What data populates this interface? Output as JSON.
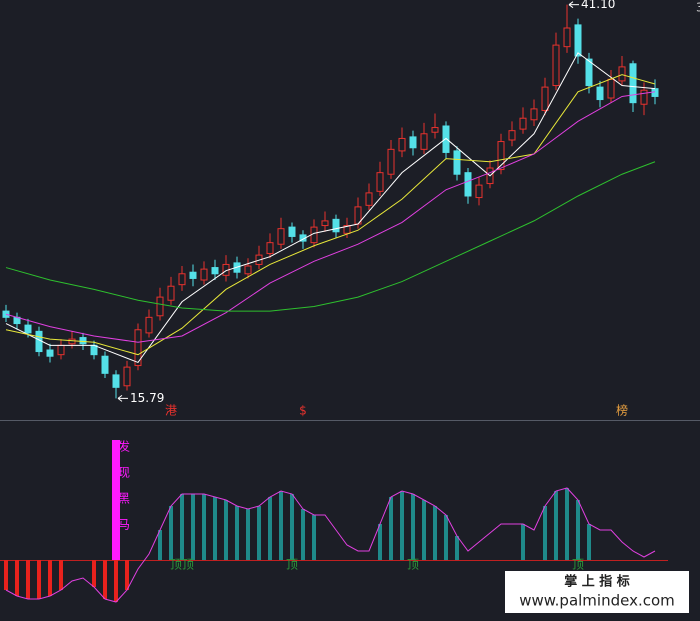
{
  "chart_data": [
    {
      "type": "candlestick",
      "open": [
        21.4,
        21.0,
        20.5,
        20.1,
        18.9,
        18.6,
        19.3,
        19.7,
        19.2,
        18.5,
        17.3,
        16.6,
        17.9,
        20.0,
        21.1,
        22.1,
        23.1,
        23.9,
        23.4,
        24.2,
        23.7,
        24.5,
        23.8,
        24.4,
        25.1,
        25.7,
        26.8,
        26.3,
        25.8,
        26.9,
        27.3,
        26.4,
        27.0,
        28.2,
        29.1,
        30.2,
        31.7,
        32.6,
        31.8,
        32.9,
        33.3,
        31.7,
        30.3,
        28.7,
        29.6,
        30.5,
        32.4,
        33.1,
        33.7,
        34.3,
        35.9,
        38.4,
        39.8,
        37.6,
        35.8,
        35.1,
        36.2,
        37.3,
        34.7,
        35.7
      ],
      "high": [
        21.8,
        21.3,
        20.9,
        20.4,
        19.3,
        19.6,
        20.1,
        20.0,
        19.5,
        18.8,
        17.6,
        18.2,
        20.6,
        21.5,
        22.9,
        23.6,
        24.3,
        24.4,
        24.6,
        24.7,
        25.0,
        24.9,
        24.8,
        25.6,
        26.4,
        27.4,
        27.1,
        26.6,
        27.3,
        27.8,
        27.6,
        27.4,
        28.7,
        29.6,
        31.0,
        32.4,
        33.2,
        33.0,
        33.5,
        34.1,
        33.6,
        32.0,
        30.6,
        30.0,
        31.1,
        32.8,
        33.6,
        34.5,
        35.0,
        36.4,
        39.3,
        41.1,
        40.2,
        38.0,
        36.2,
        36.9,
        37.8,
        37.5,
        36.1,
        36.3
      ],
      "low": [
        20.7,
        20.2,
        19.7,
        18.5,
        18.1,
        18.3,
        19.0,
        18.9,
        18.3,
        17.1,
        15.79,
        16.3,
        17.6,
        19.7,
        20.8,
        21.8,
        22.7,
        23.0,
        23.1,
        23.4,
        23.3,
        23.5,
        23.5,
        24.1,
        24.8,
        25.4,
        25.8,
        25.4,
        25.5,
        26.5,
        26.1,
        26.1,
        26.7,
        27.9,
        28.8,
        29.9,
        31.3,
        31.4,
        31.5,
        32.5,
        31.2,
        29.8,
        28.3,
        28.2,
        29.3,
        30.2,
        32.0,
        32.8,
        33.3,
        34.0,
        35.6,
        38.0,
        37.3,
        35.4,
        34.5,
        34.8,
        35.9,
        34.2,
        34.0,
        34.7
      ],
      "close": [
        21.0,
        20.6,
        20.0,
        18.8,
        18.5,
        19.2,
        19.6,
        19.3,
        18.6,
        17.4,
        16.5,
        17.8,
        20.2,
        21.0,
        22.3,
        23.0,
        23.8,
        23.5,
        24.1,
        23.8,
        24.4,
        23.9,
        24.3,
        25.0,
        25.8,
        26.7,
        26.2,
        25.9,
        26.8,
        27.2,
        26.5,
        26.9,
        28.1,
        29.0,
        30.3,
        31.8,
        32.5,
        31.9,
        32.8,
        33.2,
        31.6,
        30.2,
        28.8,
        29.5,
        30.6,
        32.3,
        33.0,
        33.8,
        34.4,
        35.8,
        38.5,
        39.6,
        37.8,
        35.9,
        35.0,
        36.3,
        37.1,
        34.8,
        35.6,
        35.2
      ],
      "up_color": "#e8322d",
      "down_color": "#54e0e8",
      "ylim": [
        14.4,
        41.4
      ],
      "ma_lines": [
        {
          "color": "#ffffff",
          "x": [
            0,
            4,
            8,
            12,
            16,
            20,
            24,
            28,
            32,
            36,
            40,
            44,
            48,
            52,
            56,
            59
          ],
          "values": [
            20.6,
            19.2,
            19.2,
            18.1,
            22.0,
            24.0,
            24.9,
            26.4,
            27.0,
            30.3,
            32.5,
            30.1,
            32.8,
            38.0,
            35.9,
            35.7
          ]
        },
        {
          "color": "#e8e83a",
          "x": [
            0,
            4,
            8,
            12,
            16,
            20,
            24,
            28,
            32,
            36,
            40,
            44,
            48,
            52,
            56,
            59
          ],
          "values": [
            20.2,
            19.6,
            19.4,
            18.6,
            20.3,
            22.8,
            24.4,
            25.6,
            26.6,
            28.6,
            31.2,
            31.0,
            31.5,
            35.5,
            36.6,
            36.0
          ]
        },
        {
          "color": "#e040e0",
          "x": [
            0,
            4,
            8,
            12,
            16,
            20,
            24,
            28,
            32,
            36,
            40,
            44,
            48,
            52,
            56,
            59
          ],
          "values": [
            21.2,
            20.4,
            19.8,
            19.4,
            19.8,
            21.3,
            23.2,
            24.6,
            25.7,
            27.1,
            29.2,
            30.3,
            31.5,
            33.6,
            35.2,
            35.5
          ]
        },
        {
          "color": "#2ec02e",
          "x": [
            0,
            4,
            8,
            12,
            16,
            20,
            24,
            28,
            32,
            36,
            40,
            44,
            48,
            52,
            56,
            59
          ],
          "values": [
            24.2,
            23.4,
            22.8,
            22.1,
            21.6,
            21.4,
            21.4,
            21.7,
            22.3,
            23.3,
            24.6,
            25.9,
            27.2,
            28.8,
            30.2,
            31.0
          ]
        }
      ],
      "annotations": [
        {
          "x": 51,
          "value": 41.1,
          "label": "41.10"
        },
        {
          "x": 10,
          "value": 15.79,
          "label": "15.79"
        }
      ],
      "markers": [
        {
          "x": 15,
          "label": "港",
          "color": "#e8322d"
        },
        {
          "x": 27,
          "label": "$",
          "color": "#e8322d"
        },
        {
          "x": 56,
          "label": "榜",
          "color": "#e8a040"
        }
      ],
      "axis_fragment": "3"
    },
    {
      "type": "indicator",
      "values": [
        -10,
        -12,
        -13,
        -13,
        -12,
        -10,
        -7,
        -6,
        -9,
        -13,
        -14,
        -10,
        -3,
        2,
        10,
        18,
        22,
        22,
        22,
        21,
        20,
        18,
        17,
        18,
        21,
        23,
        22,
        17,
        15,
        15,
        10,
        5,
        3,
        3,
        12,
        21,
        23,
        22,
        20,
        18,
        15,
        8,
        3,
        6,
        9,
        12,
        12,
        12,
        10,
        18,
        23,
        24,
        20,
        12,
        10,
        10,
        6,
        3,
        1,
        3
      ],
      "line_color": "#e040e0",
      "bars": [
        -10,
        -12,
        -13,
        -13,
        -12,
        -10,
        null,
        null,
        -9,
        -13,
        -14,
        -10,
        null,
        null,
        10,
        18,
        22,
        22,
        22,
        21,
        20,
        18,
        17,
        18,
        21,
        23,
        22,
        17,
        15,
        null,
        null,
        null,
        null,
        null,
        12,
        21,
        23,
        22,
        20,
        18,
        15,
        8,
        null,
        null,
        null,
        null,
        null,
        12,
        null,
        18,
        23,
        24,
        20,
        12,
        null,
        null,
        null,
        null,
        null,
        null
      ],
      "pos_color": "#1f8a8a",
      "neg_color": "#e8221d",
      "ylim": [
        -20,
        45
      ],
      "signal": {
        "x": 10,
        "color": "#ff1aff",
        "label": [
          "发",
          "现",
          "黑",
          "马"
        ]
      },
      "tops": [
        {
          "x": 16,
          "label": "顶顶"
        },
        {
          "x": 26,
          "label": "顶"
        },
        {
          "x": 37,
          "label": "顶"
        },
        {
          "x": 52,
          "label": "顶"
        }
      ],
      "top_color": "#2a9a3a"
    }
  ],
  "watermark": {
    "title": "掌 上 指 标",
    "url": "www.palmindex.com"
  }
}
